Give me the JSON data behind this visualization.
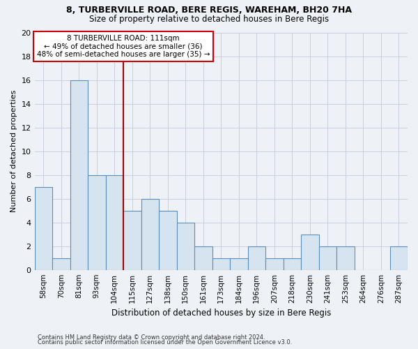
{
  "title1": "8, TURBERVILLE ROAD, BERE REGIS, WAREHAM, BH20 7HA",
  "title2": "Size of property relative to detached houses in Bere Regis",
  "xlabel": "Distribution of detached houses by size in Bere Regis",
  "ylabel": "Number of detached properties",
  "categories": [
    "58sqm",
    "70sqm",
    "81sqm",
    "93sqm",
    "104sqm",
    "115sqm",
    "127sqm",
    "138sqm",
    "150sqm",
    "161sqm",
    "173sqm",
    "184sqm",
    "196sqm",
    "207sqm",
    "218sqm",
    "230sqm",
    "241sqm",
    "253sqm",
    "264sqm",
    "276sqm",
    "287sqm"
  ],
  "values": [
    7,
    1,
    16,
    8,
    8,
    5,
    6,
    5,
    4,
    2,
    1,
    1,
    2,
    1,
    1,
    3,
    2,
    2,
    0,
    0,
    2
  ],
  "bar_color": "#d6e4f0",
  "bar_edge_color": "#5b8db8",
  "vline_after_index": 4,
  "annotation_text_line1": "8 TURBERVILLE ROAD: 111sqm",
  "annotation_text_line2": "← 49% of detached houses are smaller (36)",
  "annotation_text_line3": "48% of semi-detached houses are larger (35) →",
  "annotation_box_color": "#ffffff",
  "annotation_box_edge": "#cc0000",
  "vline_color": "#aa0000",
  "ylim": [
    0,
    20
  ],
  "yticks": [
    0,
    2,
    4,
    6,
    8,
    10,
    12,
    14,
    16,
    18,
    20
  ],
  "footer1": "Contains HM Land Registry data © Crown copyright and database right 2024.",
  "footer2": "Contains public sector information licensed under the Open Government Licence v3.0.",
  "background_color": "#eef2f7",
  "grid_color": "#c8d0dc",
  "title1_fontsize": 9.0,
  "title2_fontsize": 8.5,
  "ylabel_fontsize": 8.0,
  "xlabel_fontsize": 8.5,
  "tick_fontsize": 7.5,
  "annotation_fontsize": 7.5,
  "footer_fontsize": 6.0
}
